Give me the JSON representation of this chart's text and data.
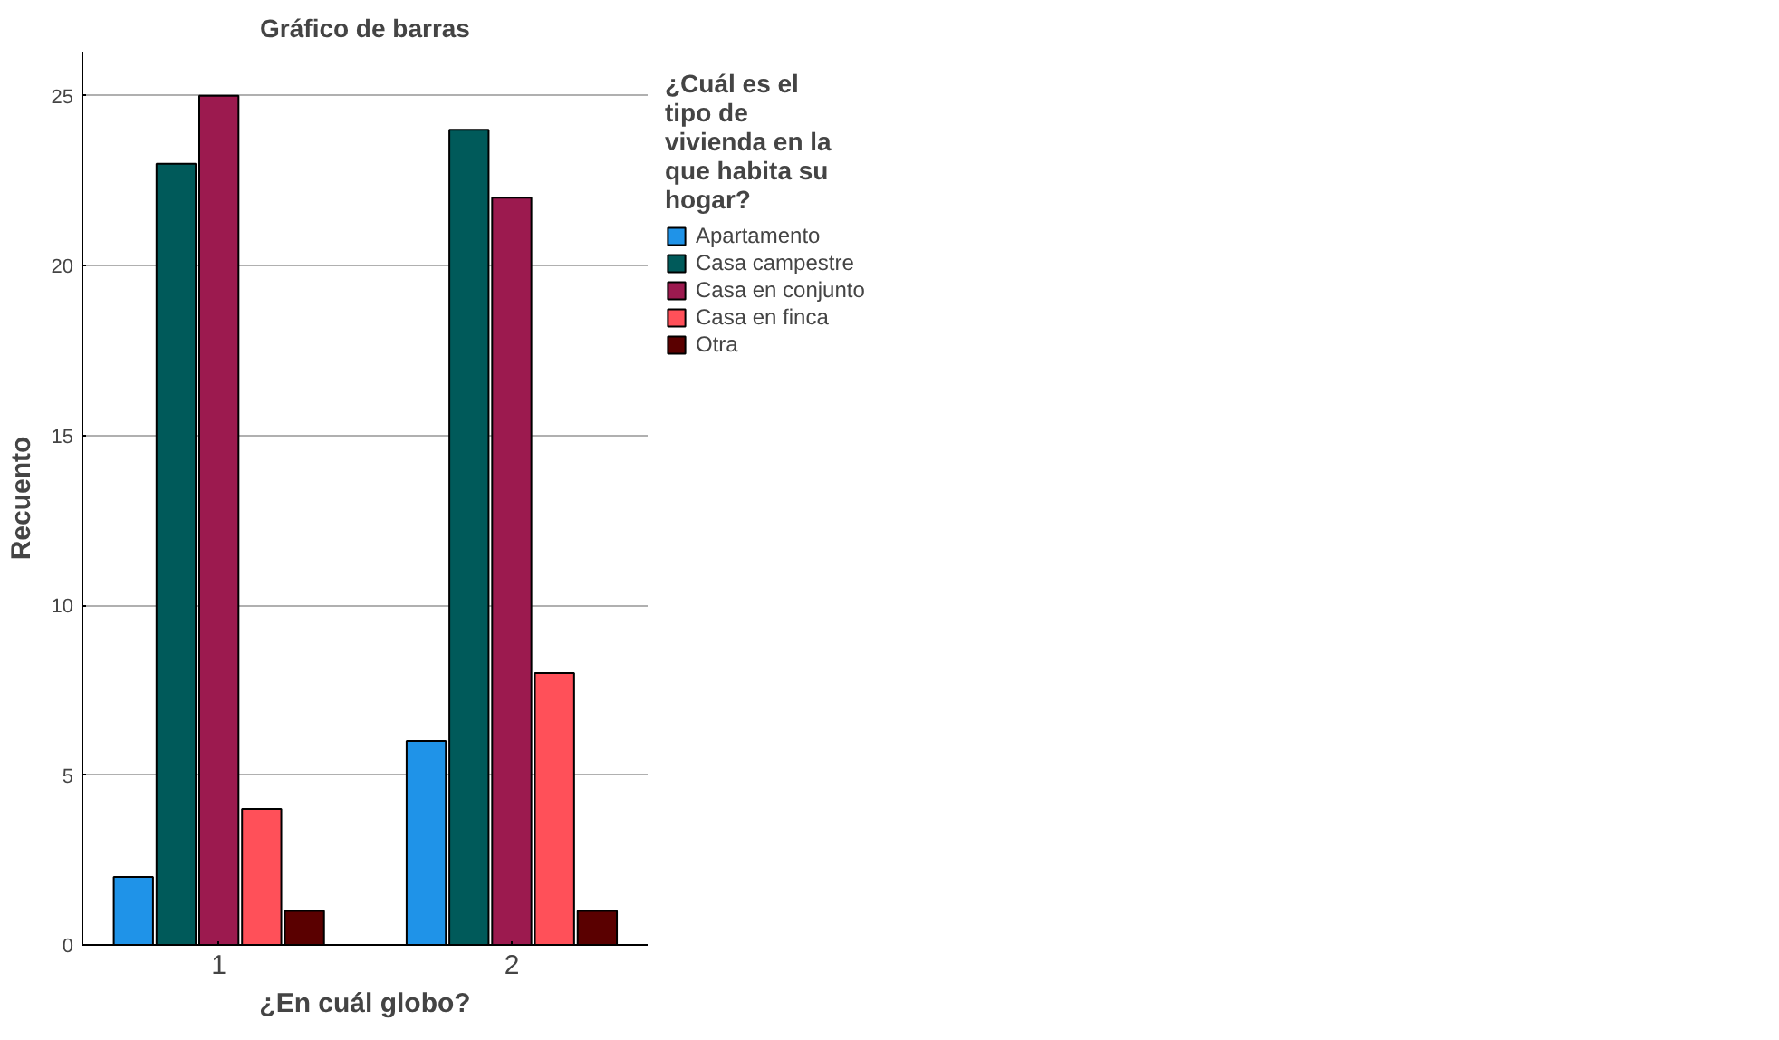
{
  "chart_data": {
    "type": "bar",
    "title": "Gráfico de barras",
    "xlabel": "¿En cuál globo?",
    "ylabel": "Recuento",
    "legend_title": "¿Cuál es el tipo de vivienda en la que habita su hogar?",
    "categories": [
      "1",
      "2"
    ],
    "series": [
      {
        "name": "Apartamento",
        "color": "#1f93e8",
        "values": [
          2,
          6
        ]
      },
      {
        "name": "Casa campestre",
        "color": "#005a5a",
        "values": [
          23,
          24
        ]
      },
      {
        "name": "Casa en conjunto",
        "color": "#9c1a4f",
        "values": [
          25,
          22
        ]
      },
      {
        "name": "Casa en finca",
        "color": "#ff5059",
        "values": [
          4,
          8
        ]
      },
      {
        "name": "Otra",
        "color": "#5a0000",
        "values": [
          1,
          1
        ]
      }
    ],
    "ylim": [
      0,
      26.3
    ],
    "yticks": [
      0,
      5,
      10,
      15,
      20,
      25
    ],
    "grid": "y",
    "legend": "right"
  }
}
